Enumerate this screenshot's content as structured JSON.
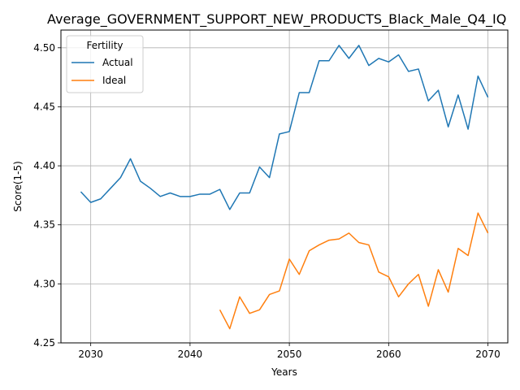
{
  "chart_data": {
    "type": "line",
    "title": "Average_GOVERNMENT_SUPPORT_NEW_PRODUCTS_Black_Male_Q4_IQ",
    "xlabel": "Years",
    "ylabel": "Score(1-5)",
    "xlim": [
      2027,
      2072
    ],
    "ylim": [
      4.25,
      4.515
    ],
    "x_ticks": [
      2030,
      2040,
      2050,
      2060,
      2070
    ],
    "y_ticks": [
      4.25,
      4.3,
      4.35,
      4.4,
      4.45,
      4.5
    ],
    "x_tick_labels": [
      "2030",
      "2040",
      "2050",
      "2060",
      "2070"
    ],
    "y_tick_labels": [
      "4.25",
      "4.30",
      "4.35",
      "4.40",
      "4.45",
      "4.50"
    ],
    "grid": true,
    "legend": {
      "title": "Fertility",
      "placement": "top-left"
    },
    "series": [
      {
        "name": "Actual",
        "color": "#1f77b4",
        "x": [
          2029,
          2030,
          2031,
          2032,
          2033,
          2034,
          2035,
          2036,
          2037,
          2038,
          2039,
          2040,
          2041,
          2042,
          2043,
          2044,
          2045,
          2046,
          2047,
          2048,
          2049,
          2050,
          2051,
          2052,
          2053,
          2054,
          2055,
          2056,
          2057,
          2058,
          2059,
          2060,
          2061,
          2062,
          2063,
          2064,
          2065,
          2066,
          2067,
          2068,
          2069,
          2070
        ],
        "values": [
          4.378,
          4.369,
          4.372,
          4.381,
          4.39,
          4.406,
          4.387,
          4.381,
          4.374,
          4.377,
          4.374,
          4.374,
          4.376,
          4.376,
          4.38,
          4.363,
          4.377,
          4.377,
          4.399,
          4.39,
          4.427,
          4.429,
          4.462,
          4.462,
          4.489,
          4.489,
          4.502,
          4.491,
          4.502,
          4.485,
          4.491,
          4.488,
          4.494,
          4.48,
          4.482,
          4.455,
          4.464,
          4.433,
          4.46,
          4.431,
          4.476,
          4.458
        ]
      },
      {
        "name": "Ideal",
        "color": "#ff7f0e",
        "x": [
          2043,
          2044,
          2045,
          2046,
          2047,
          2048,
          2049,
          2050,
          2051,
          2052,
          2053,
          2054,
          2055,
          2056,
          2057,
          2058,
          2059,
          2060,
          2061,
          2062,
          2063,
          2064,
          2065,
          2066,
          2067,
          2068,
          2069,
          2070
        ],
        "values": [
          4.278,
          4.262,
          4.289,
          4.275,
          4.278,
          4.291,
          4.294,
          4.321,
          4.308,
          4.328,
          4.333,
          4.337,
          4.338,
          4.343,
          4.335,
          4.333,
          4.31,
          4.306,
          4.289,
          4.3,
          4.308,
          4.281,
          4.312,
          4.293,
          4.33,
          4.324,
          4.36,
          4.343
        ]
      }
    ]
  }
}
